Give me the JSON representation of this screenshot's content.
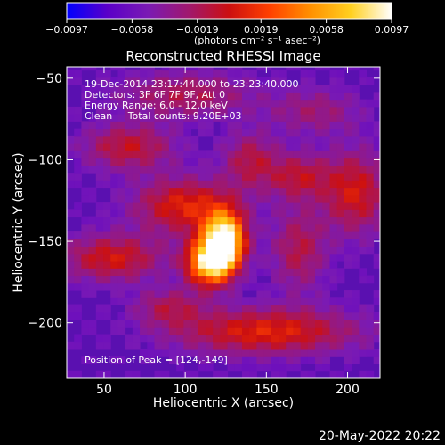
{
  "chart_data": {
    "type": "heatmap",
    "title": "Reconstructed RHESSI Image",
    "xlabel": "Heliocentric X (arcsec)",
    "ylabel": "Heliocentric Y (arcsec)",
    "xlim": [
      27,
      220
    ],
    "ylim": [
      -234,
      -43
    ],
    "x_ticks": [
      50,
      100,
      150,
      200
    ],
    "y_ticks": [
      -50,
      -100,
      -150,
      -200
    ],
    "x_tick_labels": [
      "50",
      "100",
      "150",
      "200"
    ],
    "y_tick_labels": [
      "−50",
      "−100",
      "−150",
      "−200"
    ],
    "colorbar": {
      "min": -0.0097,
      "max": 0.0097,
      "ticks": [
        -0.0097,
        -0.0058,
        -0.0019,
        0.0019,
        0.0058,
        0.0097
      ],
      "tick_labels": [
        "−0.0097",
        "−0.0058",
        "−0.0019",
        "0.0019",
        "0.0058",
        "0.0097"
      ],
      "unit_label": "(photons cm⁻² s⁻¹ asec⁻²)",
      "colormap": [
        "#0000ff",
        "#5a00c8",
        "#7a1ab4",
        "#a0186e",
        "#cc1010",
        "#ff4000",
        "#ff9000",
        "#ffd020",
        "#ffffff"
      ]
    },
    "annotations": {
      "time": "19-Dec-2014 23:17:44.000 to 23:23:40.000",
      "detectors": "Detectors: 3F 6F 7F 9F, Att 0",
      "energy": "Energy Range: 6.0 - 12.0 keV",
      "method": "Clean     Total counts: 9.20E+03",
      "peak": "Position of Peak = [124,-149]"
    },
    "peak_position": [
      124,
      -149
    ],
    "date_stamp": "20-May-2022 20:22"
  }
}
